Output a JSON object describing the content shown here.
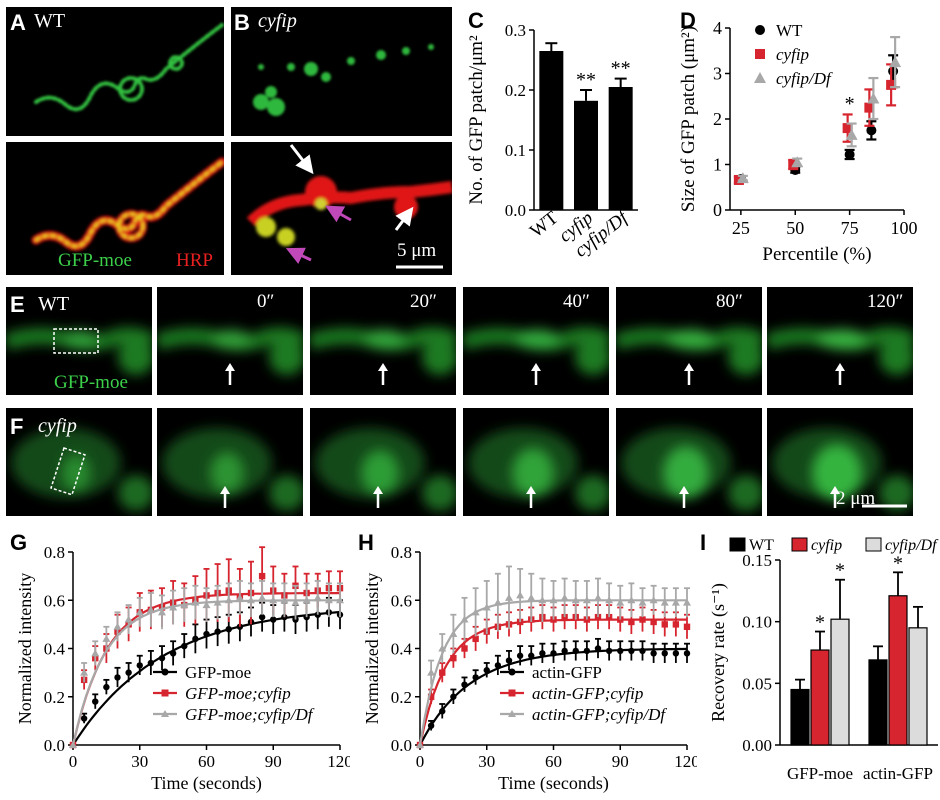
{
  "panel_letters": [
    "A",
    "B",
    "C",
    "D",
    "E",
    "F",
    "G",
    "H",
    "I"
  ],
  "panelA": {
    "genotype": "WT"
  },
  "panelB": {
    "genotype": "cyfip",
    "scalebar": "5 μm"
  },
  "stain": {
    "green": "GFP-moe",
    "red": "HRP"
  },
  "panelE": {
    "genotype": "WT",
    "marker": "GFP-moe",
    "times": [
      "0″",
      "20″",
      "40″",
      "80″",
      "120″"
    ]
  },
  "panelF": {
    "genotype": "cyfip",
    "scalebar": "2 μm"
  },
  "colors": {
    "wt": "#000000",
    "cyfip": "#d6252f",
    "cyfipDf": "#a8a8a8"
  },
  "chart_data": [
    {
      "panel": "C",
      "type": "bar",
      "categories": [
        "WT",
        "cyfip",
        "cyfip/Df"
      ],
      "values": [
        0.265,
        0.182,
        0.205
      ],
      "errors": [
        0.013,
        0.018,
        0.014
      ],
      "significance": [
        "",
        "**",
        "**"
      ],
      "ylabel": "No. of GFP patch/μm²",
      "ylim": [
        0,
        0.3
      ],
      "yticks": [
        "0.0",
        "0.1",
        "0.2",
        "0.3"
      ]
    },
    {
      "panel": "D",
      "type": "scatter",
      "xlabel": "Percentile (%)",
      "ylabel": "Size of GFP patch (μm²)",
      "xlim": [
        20,
        100
      ],
      "ylim": [
        0,
        4
      ],
      "xticks": [
        "25",
        "50",
        "75",
        "100"
      ],
      "yticks": [
        "0",
        "1",
        "2",
        "3",
        "4"
      ],
      "legend": [
        "WT",
        "cyfip",
        "cyfip/Df"
      ],
      "x": [
        25,
        50,
        75,
        85,
        95
      ],
      "series": [
        {
          "name": "WT",
          "values": [
            0.68,
            0.88,
            1.22,
            1.75,
            3.05
          ],
          "errors": [
            0.04,
            0.06,
            0.1,
            0.2,
            0.35
          ]
        },
        {
          "name": "cyfip",
          "values": [
            0.66,
            1.0,
            1.8,
            2.25,
            2.75
          ],
          "errors": [
            0.06,
            0.1,
            0.3,
            0.4,
            0.45
          ]
        },
        {
          "name": "cyfip/Df",
          "values": [
            0.7,
            1.05,
            1.65,
            2.45,
            3.25
          ],
          "errors": [
            0.05,
            0.08,
            0.25,
            0.45,
            0.55
          ]
        }
      ],
      "annotation": "*"
    },
    {
      "panel": "G",
      "type": "line",
      "xlabel": "Time (seconds)",
      "ylabel": "Normalized intensity",
      "xlim": [
        0,
        120
      ],
      "ylim": [
        0,
        0.8
      ],
      "xticks": [
        "0",
        "30",
        "60",
        "90",
        "120"
      ],
      "yticks": [
        "0.0",
        "0.2",
        "0.4",
        "0.6",
        "0.8"
      ],
      "x": [
        0,
        5,
        10,
        15,
        20,
        25,
        30,
        35,
        40,
        45,
        50,
        55,
        60,
        65,
        70,
        75,
        80,
        85,
        90,
        95,
        100,
        105,
        110,
        115,
        120
      ],
      "series": [
        {
          "name": "GFP-moe",
          "plateau": 0.58,
          "rate": 0.025,
          "values": [
            0,
            0.11,
            0.18,
            0.24,
            0.28,
            0.3,
            0.33,
            0.34,
            0.36,
            0.38,
            0.41,
            0.44,
            0.46,
            0.47,
            0.48,
            0.49,
            0.51,
            0.53,
            0.52,
            0.53,
            0.52,
            0.53,
            0.54,
            0.55,
            0.54
          ],
          "errors": [
            0,
            0.02,
            0.03,
            0.03,
            0.04,
            0.04,
            0.04,
            0.05,
            0.05,
            0.05,
            0.05,
            0.06,
            0.06,
            0.06,
            0.06,
            0.06,
            0.06,
            0.06,
            0.06,
            0.06,
            0.06,
            0.06,
            0.06,
            0.06,
            0.06
          ]
        },
        {
          "name": "GFP-moe;cyfip",
          "plateau": 0.63,
          "rate": 0.065,
          "values": [
            0,
            0.27,
            0.36,
            0.4,
            0.47,
            0.5,
            0.55,
            0.56,
            0.57,
            0.59,
            0.58,
            0.6,
            0.62,
            0.63,
            0.64,
            0.61,
            0.63,
            0.7,
            0.64,
            0.62,
            0.66,
            0.63,
            0.64,
            0.65,
            0.65
          ],
          "errors": [
            0,
            0.04,
            0.05,
            0.06,
            0.07,
            0.07,
            0.08,
            0.08,
            0.08,
            0.09,
            0.09,
            0.1,
            0.11,
            0.12,
            0.13,
            0.12,
            0.13,
            0.12,
            0.1,
            0.09,
            0.08,
            0.08,
            0.07,
            0.07,
            0.07
          ]
        },
        {
          "name": "GFP-moe;cyfip/Df",
          "plateau": 0.6,
          "rate": 0.07,
          "values": [
            0,
            0.3,
            0.38,
            0.44,
            0.49,
            0.52,
            0.55,
            0.56,
            0.55,
            0.57,
            0.58,
            0.59,
            0.58,
            0.59,
            0.6,
            0.61,
            0.6,
            0.61,
            0.6,
            0.6,
            0.59,
            0.6,
            0.61,
            0.6,
            0.6
          ],
          "errors": [
            0,
            0.04,
            0.05,
            0.05,
            0.06,
            0.06,
            0.06,
            0.07,
            0.07,
            0.07,
            0.07,
            0.07,
            0.07,
            0.07,
            0.07,
            0.07,
            0.07,
            0.07,
            0.07,
            0.07,
            0.07,
            0.07,
            0.07,
            0.07,
            0.07
          ]
        }
      ]
    },
    {
      "panel": "H",
      "type": "line",
      "xlabel": "Time (seconds)",
      "ylabel": "Normalized intensity",
      "xlim": [
        0,
        120
      ],
      "ylim": [
        0,
        0.8
      ],
      "xticks": [
        "0",
        "30",
        "60",
        "90",
        "120"
      ],
      "yticks": [
        "0.0",
        "0.2",
        "0.4",
        "0.6",
        "0.8"
      ],
      "x": [
        0,
        5,
        10,
        15,
        20,
        25,
        30,
        35,
        40,
        45,
        50,
        55,
        60,
        65,
        70,
        75,
        80,
        85,
        90,
        95,
        100,
        105,
        110,
        115,
        120
      ],
      "series": [
        {
          "name": "actin-GFP",
          "plateau": 0.4,
          "rate": 0.045,
          "values": [
            0,
            0.08,
            0.14,
            0.2,
            0.25,
            0.28,
            0.31,
            0.33,
            0.35,
            0.37,
            0.37,
            0.38,
            0.38,
            0.39,
            0.39,
            0.39,
            0.4,
            0.39,
            0.39,
            0.39,
            0.39,
            0.38,
            0.38,
            0.38,
            0.38
          ],
          "errors": [
            0,
            0.02,
            0.03,
            0.03,
            0.03,
            0.03,
            0.03,
            0.04,
            0.04,
            0.04,
            0.04,
            0.04,
            0.04,
            0.04,
            0.04,
            0.04,
            0.04,
            0.04,
            0.04,
            0.04,
            0.04,
            0.04,
            0.04,
            0.04,
            0.04
          ]
        },
        {
          "name": "actin-GFP;cyfip",
          "plateau": 0.52,
          "rate": 0.085,
          "values": [
            0,
            0.2,
            0.3,
            0.36,
            0.4,
            0.44,
            0.47,
            0.49,
            0.5,
            0.51,
            0.52,
            0.53,
            0.52,
            0.53,
            0.53,
            0.52,
            0.53,
            0.53,
            0.52,
            0.51,
            0.52,
            0.51,
            0.5,
            0.5,
            0.49
          ],
          "errors": [
            0,
            0.03,
            0.04,
            0.04,
            0.04,
            0.05,
            0.05,
            0.05,
            0.05,
            0.05,
            0.05,
            0.05,
            0.05,
            0.05,
            0.05,
            0.05,
            0.05,
            0.05,
            0.05,
            0.05,
            0.05,
            0.05,
            0.05,
            0.05,
            0.05
          ]
        },
        {
          "name": "actin-GFP;cyfip/Df",
          "plateau": 0.6,
          "rate": 0.1,
          "values": [
            0,
            0.3,
            0.4,
            0.46,
            0.52,
            0.55,
            0.57,
            0.59,
            0.61,
            0.62,
            0.61,
            0.6,
            0.6,
            0.61,
            0.6,
            0.6,
            0.61,
            0.6,
            0.59,
            0.6,
            0.59,
            0.6,
            0.59,
            0.59,
            0.59
          ],
          "errors": [
            0,
            0.05,
            0.06,
            0.08,
            0.09,
            0.1,
            0.11,
            0.12,
            0.13,
            0.11,
            0.1,
            0.09,
            0.08,
            0.08,
            0.08,
            0.08,
            0.08,
            0.07,
            0.07,
            0.07,
            0.06,
            0.06,
            0.06,
            0.06,
            0.06
          ]
        }
      ]
    },
    {
      "panel": "I",
      "type": "bar",
      "categories": [
        "GFP-moe",
        "actin-GFP"
      ],
      "ylabel": "Recovery rate (s⁻¹)",
      "ylim": [
        0,
        0.15
      ],
      "yticks": [
        "0.00",
        "0.05",
        "0.10",
        "0.15"
      ],
      "legend": [
        "WT",
        "cyfip",
        "cyfip/Df"
      ],
      "series": [
        {
          "name": "WT",
          "values": [
            0.045,
            0.069
          ],
          "errors": [
            0.008,
            0.011
          ],
          "significance": [
            "",
            ""
          ]
        },
        {
          "name": "cyfip",
          "values": [
            0.077,
            0.121
          ],
          "errors": [
            0.015,
            0.019
          ],
          "significance": [
            "*",
            "*"
          ]
        },
        {
          "name": "cyfip/Df",
          "values": [
            0.102,
            0.095
          ],
          "errors": [
            0.032,
            0.017
          ],
          "significance": [
            "*",
            ""
          ]
        }
      ]
    }
  ]
}
